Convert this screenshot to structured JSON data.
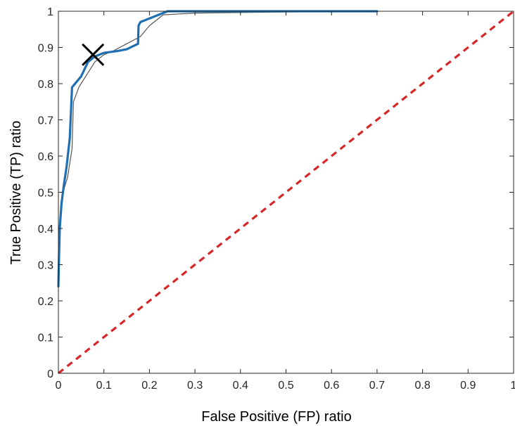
{
  "chart_data": {
    "type": "line",
    "title": "",
    "xlabel": "False Positive (FP) ratio",
    "ylabel": "True Positive (TP) ratio",
    "xlim": [
      0,
      1
    ],
    "ylim": [
      0,
      1
    ],
    "grid": false,
    "x_ticks": [
      "0",
      "0.1",
      "0.2",
      "0.3",
      "0.4",
      "0.5",
      "0.6",
      "0.7",
      "0.8",
      "0.9",
      "1"
    ],
    "y_ticks": [
      "0",
      "0.1",
      "0.2",
      "0.3",
      "0.4",
      "0.5",
      "0.6",
      "0.7",
      "0.8",
      "0.9",
      "1"
    ],
    "series": [
      {
        "style": "solid-thin",
        "color": "#555555",
        "points": [
          [
            0,
            0.24
          ],
          [
            0.002,
            0.38
          ],
          [
            0.005,
            0.45
          ],
          [
            0.01,
            0.5
          ],
          [
            0.02,
            0.54
          ],
          [
            0.03,
            0.62
          ],
          [
            0.033,
            0.75
          ],
          [
            0.045,
            0.79
          ],
          [
            0.06,
            0.82
          ],
          [
            0.08,
            0.86
          ],
          [
            0.1,
            0.88
          ],
          [
            0.12,
            0.89
          ],
          [
            0.15,
            0.91
          ],
          [
            0.18,
            0.93
          ],
          [
            0.2,
            0.96
          ],
          [
            0.23,
            0.99
          ],
          [
            0.3,
            0.995
          ],
          [
            0.5,
            0.998
          ],
          [
            0.7,
            1.0
          ]
        ]
      },
      {
        "style": "solid-thick",
        "color": "#1f6fb2",
        "points": [
          [
            0,
            0.24
          ],
          [
            0.001,
            0.3
          ],
          [
            0.003,
            0.4
          ],
          [
            0.007,
            0.47
          ],
          [
            0.012,
            0.52
          ],
          [
            0.018,
            0.57
          ],
          [
            0.025,
            0.65
          ],
          [
            0.03,
            0.79
          ],
          [
            0.05,
            0.82
          ],
          [
            0.065,
            0.86
          ],
          [
            0.08,
            0.875
          ],
          [
            0.1,
            0.885
          ],
          [
            0.13,
            0.89
          ],
          [
            0.15,
            0.895
          ],
          [
            0.175,
            0.91
          ],
          [
            0.176,
            0.96
          ],
          [
            0.18,
            0.97
          ],
          [
            0.2,
            0.98
          ],
          [
            0.22,
            0.99
          ],
          [
            0.24,
            1.0
          ],
          [
            0.3,
            1.0
          ],
          [
            0.5,
            1.0
          ],
          [
            0.7,
            1.0
          ]
        ]
      },
      {
        "style": "dashed",
        "color": "#d62728",
        "points": [
          [
            0,
            0
          ],
          [
            1,
            1
          ]
        ]
      }
    ],
    "markers": [
      {
        "shape": "x",
        "color": "#000000",
        "x": 0.076,
        "y": 0.88
      }
    ]
  }
}
